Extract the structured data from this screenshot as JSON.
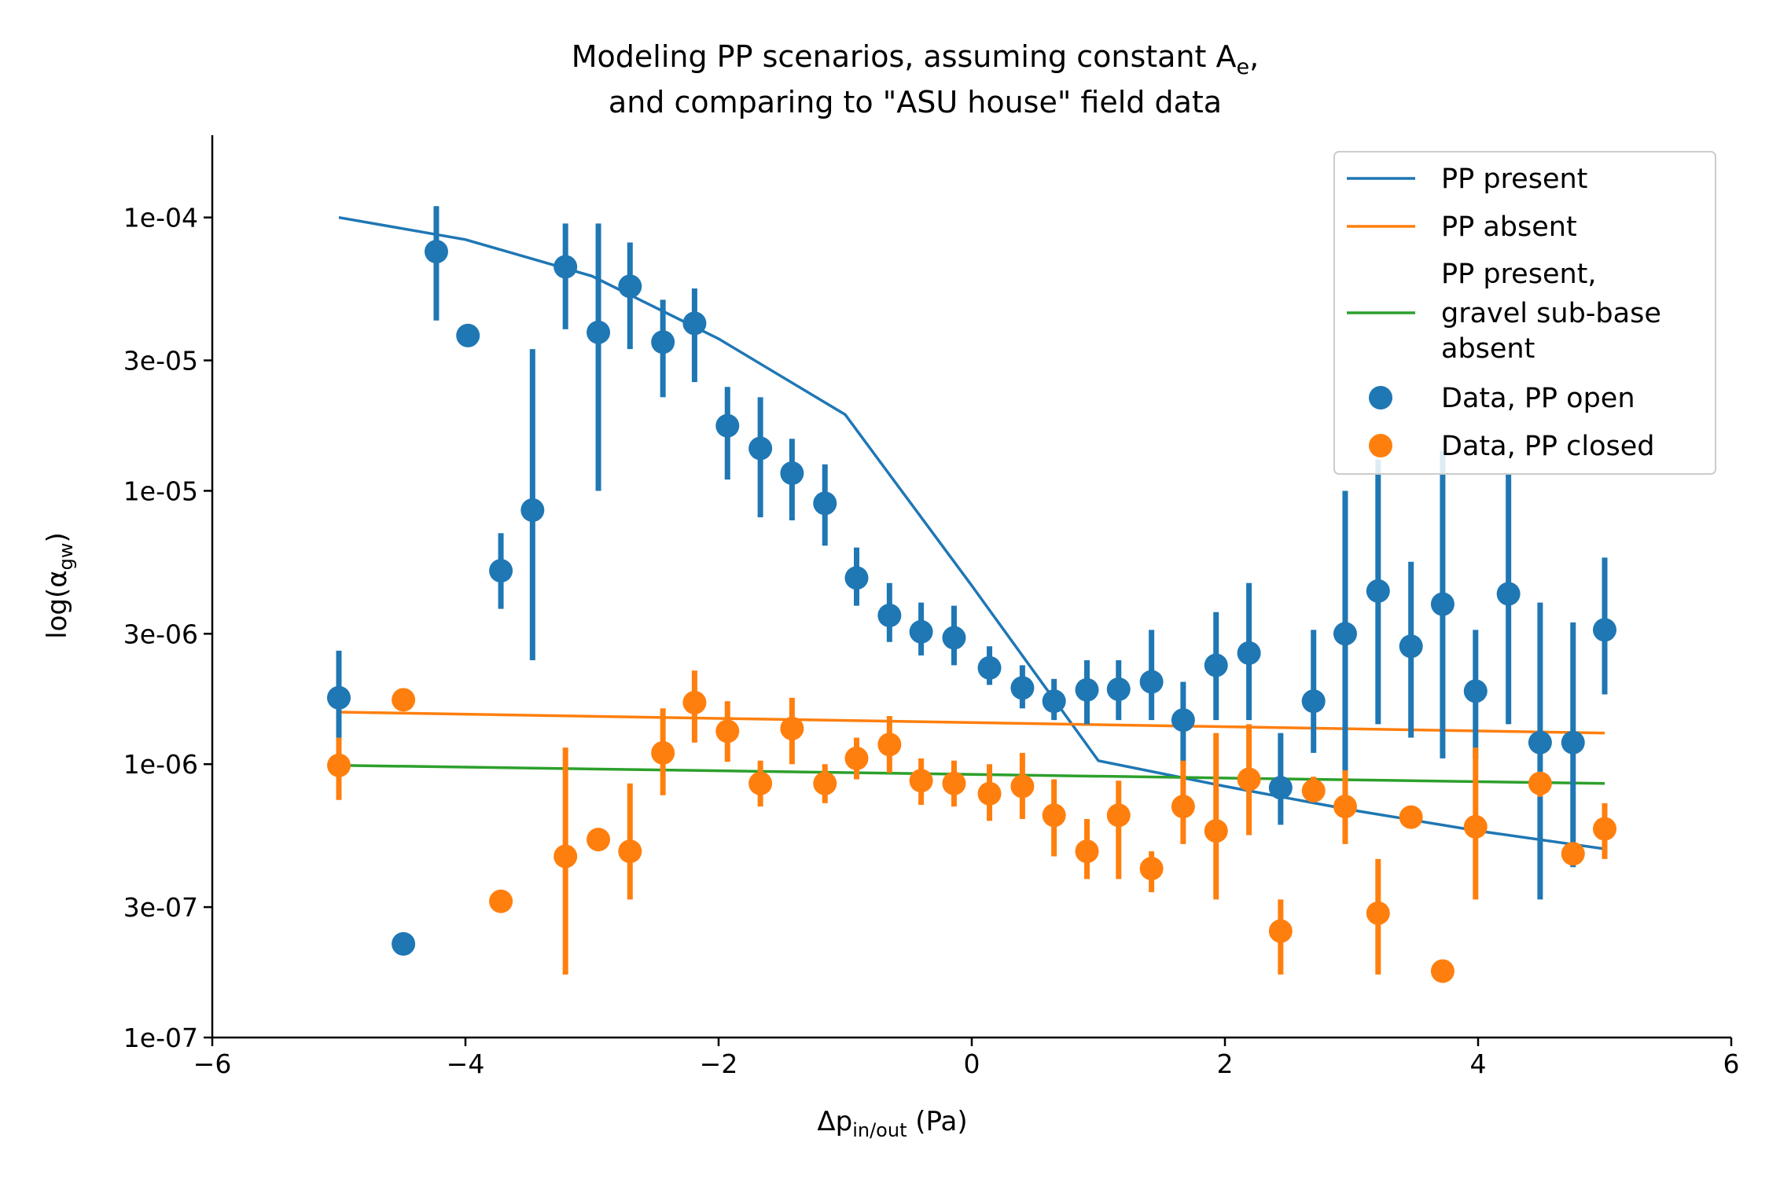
{
  "chart_data": {
    "type": "scatter",
    "title_line1": "Modeling PP scenarios, assuming constant A",
    "title_line1_sub": "e",
    "title_line1_end": ",",
    "title_line2": "and comparing to \"ASU house\" field data",
    "xlabel_main": "Δp",
    "xlabel_sub": "in/out",
    "xlabel_unit": " (Pa)",
    "ylabel_pre": "log(α",
    "ylabel_sub": "gw",
    "ylabel_post": ")",
    "xlim": [
      -6,
      6
    ],
    "ylim": [
      1e-07,
      0.0002
    ],
    "yscale": "log",
    "x_ticks": [
      -6,
      -4,
      -2,
      0,
      2,
      4,
      6
    ],
    "x_tick_labels": [
      "−6",
      "−4",
      "−2",
      "0",
      "2",
      "4",
      "6"
    ],
    "y_ticks": [
      1e-07,
      3e-07,
      1e-06,
      3e-06,
      1e-05,
      3e-05,
      0.0001
    ],
    "y_tick_labels": [
      "1e-07",
      "3e-07",
      "1e-06",
      "3e-06",
      "1e-05",
      "3e-05",
      "1e-04"
    ],
    "grid": false,
    "legend_position": "top-right",
    "colors": {
      "blue": "#1f77b4",
      "orange": "#ff7f0e",
      "green": "#2ca02c"
    },
    "lines": [
      {
        "name": "PP present",
        "color": "#1f77b4",
        "x": [
          -5,
          -4,
          -3,
          -2,
          -1,
          0,
          1,
          2,
          3,
          4,
          5
        ],
        "y": [
          0.0001,
          8.3e-05,
          6.1e-05,
          3.6e-05,
          1.9e-05,
          4.5e-06,
          1.03e-06,
          8.3e-07,
          6.8e-07,
          5.7e-07,
          4.9e-07
        ]
      },
      {
        "name": "PP absent",
        "color": "#ff7f0e",
        "x": [
          -5,
          5
        ],
        "y": [
          1.55e-06,
          1.3e-06
        ]
      },
      {
        "name": "PP present,",
        "name_line2": "gravel sub-base",
        "name_line3": "absent",
        "color": "#2ca02c",
        "x": [
          -5,
          5
        ],
        "y": [
          9.9e-07,
          8.5e-07
        ]
      }
    ],
    "series": [
      {
        "name": "Data, PP open",
        "color": "#1f77b4",
        "points": [
          [
            -5.0,
            1.75e-06,
            1.25e-06,
            2.6e-06
          ],
          [
            -4.49,
            2.2e-07,
            null,
            null
          ],
          [
            -4.23,
            7.5e-05,
            4.2e-05,
            0.00011
          ],
          [
            -3.98,
            3.7e-05,
            null,
            null
          ],
          [
            -3.72,
            5.1e-06,
            3.7e-06,
            7e-06
          ],
          [
            -3.47,
            8.5e-06,
            2.4e-06,
            3.3e-05
          ],
          [
            -3.21,
            6.6e-05,
            3.9e-05,
            9.5e-05
          ],
          [
            -2.95,
            3.8e-05,
            1e-05,
            9.5e-05
          ],
          [
            -2.7,
            5.6e-05,
            3.3e-05,
            8.1e-05
          ],
          [
            -2.44,
            3.5e-05,
            2.2e-05,
            5e-05
          ],
          [
            -2.19,
            4.1e-05,
            2.5e-05,
            5.5e-05
          ],
          [
            -1.93,
            1.73e-05,
            1.1e-05,
            2.4e-05
          ],
          [
            -1.67,
            1.43e-05,
            8e-06,
            2.2e-05
          ],
          [
            -1.42,
            1.16e-05,
            7.8e-06,
            1.55e-05
          ],
          [
            -1.16,
            9e-06,
            6.3e-06,
            1.25e-05
          ],
          [
            -0.91,
            4.8e-06,
            3.8e-06,
            6.2e-06
          ],
          [
            -0.65,
            3.5e-06,
            2.8e-06,
            4.6e-06
          ],
          [
            -0.4,
            3.05e-06,
            2.5e-06,
            3.9e-06
          ],
          [
            -0.14,
            2.9e-06,
            2.3e-06,
            3.8e-06
          ],
          [
            0.14,
            2.25e-06,
            1.95e-06,
            2.7e-06
          ],
          [
            0.4,
            1.9e-06,
            1.6e-06,
            2.3e-06
          ],
          [
            0.65,
            1.7e-06,
            1.45e-06,
            2.05e-06
          ],
          [
            0.91,
            1.87e-06,
            1.4e-06,
            2.4e-06
          ],
          [
            1.16,
            1.88e-06,
            1.45e-06,
            2.4e-06
          ],
          [
            1.42,
            2e-06,
            1.45e-06,
            3.1e-06
          ],
          [
            1.67,
            1.45e-06,
            1e-06,
            2e-06
          ],
          [
            1.93,
            2.3e-06,
            1.45e-06,
            3.6e-06
          ],
          [
            2.19,
            2.55e-06,
            1.45e-06,
            4.6e-06
          ],
          [
            2.44,
            8.2e-07,
            6e-07,
            1.3e-06
          ],
          [
            2.7,
            1.7e-06,
            1.1e-06,
            3.1e-06
          ],
          [
            2.95,
            3e-06,
            9e-07,
            1e-05
          ],
          [
            3.21,
            4.3e-06,
            1.4e-06,
            1.3e-05
          ],
          [
            3.47,
            2.7e-06,
            1.25e-06,
            5.5e-06
          ],
          [
            3.72,
            3.85e-06,
            1.05e-06,
            1.4e-05
          ],
          [
            3.98,
            1.85e-06,
            1.05e-06,
            3.1e-06
          ],
          [
            4.24,
            4.2e-06,
            1.4e-06,
            1.15e-05
          ],
          [
            4.49,
            1.2e-06,
            3.2e-07,
            3.9e-06
          ],
          [
            4.75,
            1.2e-06,
            4.2e-07,
            3.3e-06
          ],
          [
            5.0,
            3.1e-06,
            1.8e-06,
            5.7e-06
          ]
        ]
      },
      {
        "name": "Data, PP closed",
        "color": "#ff7f0e",
        "points": [
          [
            -5.0,
            9.9e-07,
            7.4e-07,
            1.25e-06
          ],
          [
            -4.49,
            1.72e-06,
            null,
            null
          ],
          [
            -3.72,
            3.15e-07,
            null,
            null
          ],
          [
            -3.21,
            4.6e-07,
            1.7e-07,
            1.15e-06
          ],
          [
            -2.95,
            5.3e-07,
            null,
            null
          ],
          [
            -2.7,
            4.8e-07,
            3.2e-07,
            8.5e-07
          ],
          [
            -2.44,
            1.1e-06,
            7.7e-07,
            1.6e-06
          ],
          [
            -2.19,
            1.68e-06,
            1.2e-06,
            2.2e-06
          ],
          [
            -1.93,
            1.32e-06,
            1.02e-06,
            1.7e-06
          ],
          [
            -1.67,
            8.5e-07,
            7e-07,
            1.03e-06
          ],
          [
            -1.42,
            1.35e-06,
            1e-06,
            1.75e-06
          ],
          [
            -1.16,
            8.5e-07,
            7.2e-07,
            1e-06
          ],
          [
            -0.91,
            1.05e-06,
            8.8e-07,
            1.25e-06
          ],
          [
            -0.65,
            1.18e-06,
            9.3e-07,
            1.5e-06
          ],
          [
            -0.4,
            8.7e-07,
            7.1e-07,
            1.05e-06
          ],
          [
            -0.14,
            8.5e-07,
            7e-07,
            1.03e-06
          ],
          [
            0.14,
            7.8e-07,
            6.2e-07,
            1e-06
          ],
          [
            0.4,
            8.3e-07,
            6.3e-07,
            1.1e-06
          ],
          [
            0.65,
            6.5e-07,
            4.6e-07,
            8.8e-07
          ],
          [
            0.91,
            4.8e-07,
            3.8e-07,
            6.3e-07
          ],
          [
            1.16,
            6.5e-07,
            3.8e-07,
            8.7e-07
          ],
          [
            1.42,
            4.15e-07,
            3.4e-07,
            4.8e-07
          ],
          [
            1.67,
            7e-07,
            5.1e-07,
            1.03e-06
          ],
          [
            1.93,
            5.7e-07,
            3.2e-07,
            1.3e-06
          ],
          [
            2.19,
            8.8e-07,
            5.5e-07,
            1.4e-06
          ],
          [
            2.44,
            2.45e-07,
            1.7e-07,
            3.2e-07
          ],
          [
            2.7,
            8e-07,
            7.3e-07,
            9e-07
          ],
          [
            2.95,
            7e-07,
            5.1e-07,
            9.5e-07
          ],
          [
            3.21,
            2.85e-07,
            1.7e-07,
            4.5e-07
          ],
          [
            3.47,
            6.4e-07,
            5.9e-07,
            7e-07
          ],
          [
            3.72,
            1.75e-07,
            null,
            null
          ],
          [
            3.98,
            5.9e-07,
            3.2e-07,
            1.15e-06
          ],
          [
            4.49,
            8.5e-07,
            7.6e-07,
            9.1e-07
          ],
          [
            4.75,
            4.7e-07,
            4.3e-07,
            5.1e-07
          ],
          [
            5.0,
            5.8e-07,
            4.5e-07,
            7.2e-07
          ]
        ]
      }
    ]
  }
}
